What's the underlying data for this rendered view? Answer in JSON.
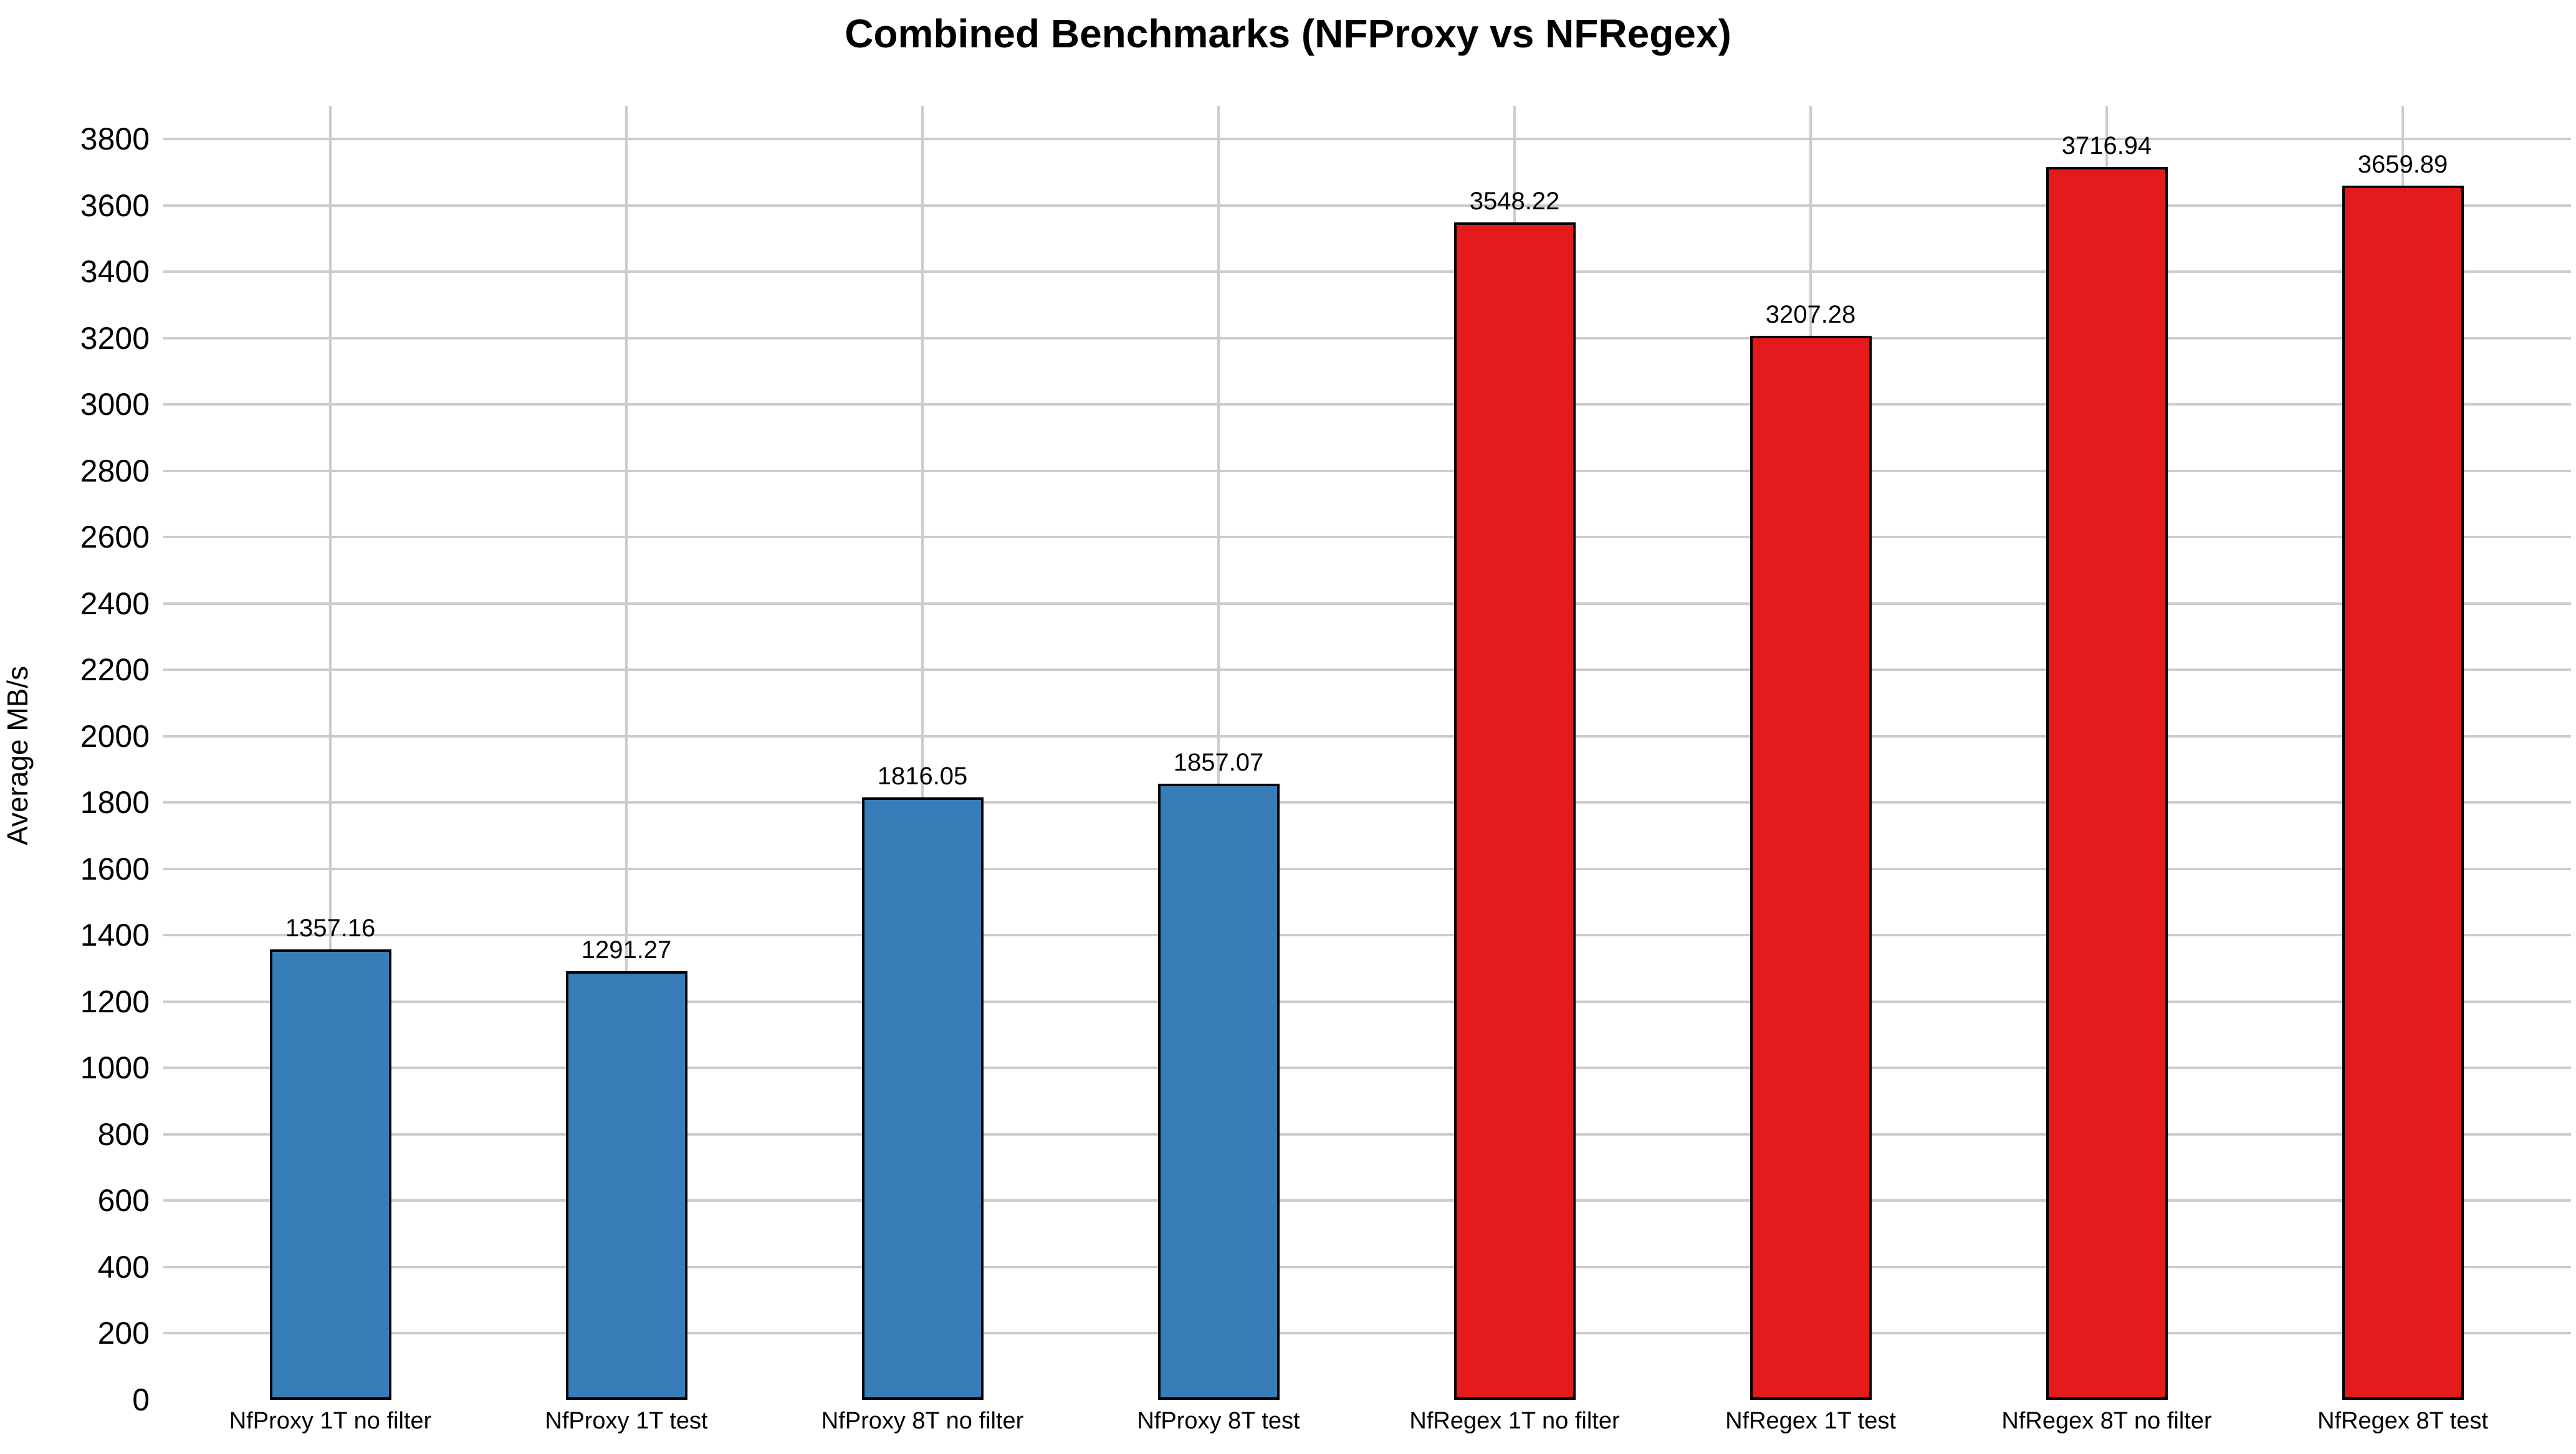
{
  "chart_data": {
    "type": "bar",
    "title": "Combined Benchmarks (NFProxy vs NFRegex)",
    "xlabel": "",
    "ylabel": "Average MB/s",
    "categories": [
      "NfProxy 1T no filter",
      "NfProxy 1T test",
      "NfProxy 8T no filter",
      "NfProxy 8T test",
      "NfRegex 1T no filter",
      "NfRegex 1T test",
      "NfRegex 8T no filter",
      "NfRegex 8T test"
    ],
    "values": [
      1357.16,
      1291.27,
      1816.05,
      1857.07,
      3548.22,
      3207.28,
      3716.94,
      3659.89
    ],
    "value_labels": [
      "1357.16",
      "1291.27",
      "1816.05",
      "1857.07",
      "3548.22",
      "3207.28",
      "3716.94",
      "3659.89"
    ],
    "bar_colors": [
      "#377eb8",
      "#377eb8",
      "#377eb8",
      "#377eb8",
      "#e41a1c",
      "#e41a1c",
      "#e41a1c",
      "#e41a1c"
    ],
    "group_colors": {
      "NfProxy": "#377eb8",
      "NfRegex": "#e41a1c"
    },
    "bar_edge_color": "#000000",
    "background_color": "#ffffff",
    "text_color": "#000000",
    "grid": true,
    "gridline_color": "#cccccc",
    "legend": "none",
    "ylim": [
      0,
      3900
    ],
    "yticks": [
      0,
      200,
      400,
      600,
      800,
      1000,
      1200,
      1400,
      1600,
      1800,
      2000,
      2200,
      2400,
      2600,
      2800,
      3000,
      3200,
      3400,
      3600,
      3800
    ]
  }
}
